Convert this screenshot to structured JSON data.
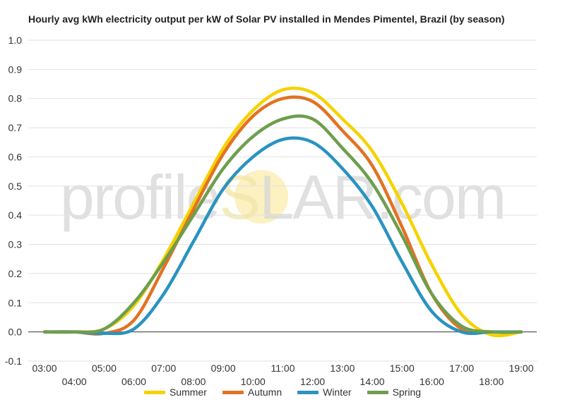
{
  "chart_data": {
    "type": "line",
    "title": "Hourly avg kWh electricity output per kW of Solar PV installed in Mendes Pimentel, Brazil (by season)",
    "xlabel": "",
    "ylabel": "",
    "ylim": [
      -0.1,
      1.0
    ],
    "yticks": [
      "-0.1",
      "0.0",
      "0.1",
      "0.2",
      "0.3",
      "0.4",
      "0.5",
      "0.6",
      "0.7",
      "0.8",
      "0.9",
      "1.0"
    ],
    "x": [
      "03:00",
      "04:00",
      "05:00",
      "06:00",
      "07:00",
      "08:00",
      "09:00",
      "10:00",
      "11:00",
      "12:00",
      "13:00",
      "14:00",
      "15:00",
      "16:00",
      "17:00",
      "18:00",
      "19:00"
    ],
    "grid": true,
    "legend_position": "bottom",
    "series": [
      {
        "name": "Summer",
        "color": "#F5D200",
        "values": [
          0.0,
          0.0,
          0.01,
          0.09,
          0.25,
          0.44,
          0.63,
          0.76,
          0.83,
          0.82,
          0.73,
          0.62,
          0.44,
          0.23,
          0.06,
          -0.01,
          0.0
        ]
      },
      {
        "name": "Autumn",
        "color": "#E37222",
        "values": [
          0.0,
          0.0,
          -0.005,
          0.04,
          0.22,
          0.42,
          0.61,
          0.74,
          0.8,
          0.79,
          0.69,
          0.57,
          0.36,
          0.13,
          0.01,
          0.0,
          0.0
        ]
      },
      {
        "name": "Winter",
        "color": "#2A93C0",
        "values": [
          0.0,
          0.0,
          -0.005,
          0.01,
          0.13,
          0.31,
          0.49,
          0.6,
          0.66,
          0.65,
          0.56,
          0.43,
          0.24,
          0.07,
          0.0,
          0.0,
          0.0
        ]
      },
      {
        "name": "Spring",
        "color": "#6E9E4E",
        "values": [
          0.0,
          0.0,
          0.01,
          0.1,
          0.24,
          0.4,
          0.56,
          0.67,
          0.73,
          0.73,
          0.63,
          0.51,
          0.33,
          0.13,
          0.02,
          0.0,
          0.0
        ]
      }
    ]
  },
  "watermark": {
    "text_left": "profile",
    "text_s": "S",
    "text_right": "LAR.com"
  }
}
